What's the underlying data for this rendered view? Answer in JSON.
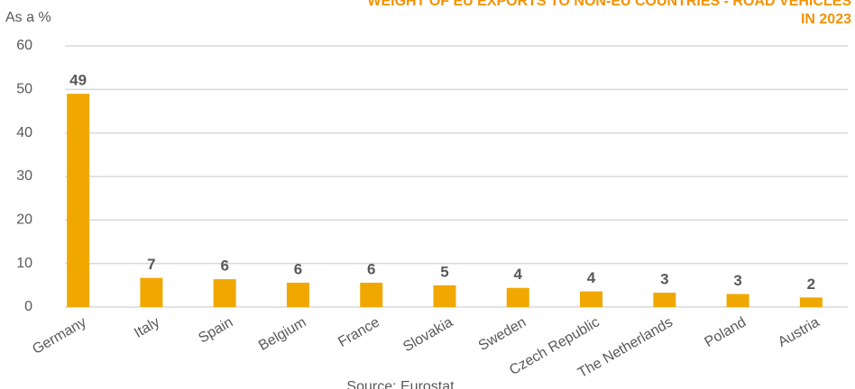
{
  "chart_data": {
    "type": "bar",
    "title": [
      "WEIGHT OF EU EXPORTS TO NON-EU COUNTRIES - ROAD VEHICLES",
      "IN 2023"
    ],
    "y_label": "As a %",
    "source": "Source: Eurostat",
    "categories": [
      "Germany",
      "Italy",
      "Spain",
      "Belgium",
      "France",
      "Slovakia",
      "Sweden",
      "Czech Republic",
      "The Netherlands",
      "Poland",
      "Austria"
    ],
    "values": [
      49,
      6.7,
      6.4,
      5.6,
      5.6,
      5.0,
      4.4,
      3.6,
      3.3,
      3.0,
      2.2
    ],
    "value_labels": [
      "49",
      "7",
      "6",
      "6",
      "6",
      "5",
      "4",
      "4",
      "3",
      "3",
      "2"
    ],
    "color": "#f0a800",
    "ylim": [
      0,
      60
    ],
    "yticks": [
      0,
      10,
      20,
      30,
      40,
      50,
      60
    ],
    "grid": true
  }
}
